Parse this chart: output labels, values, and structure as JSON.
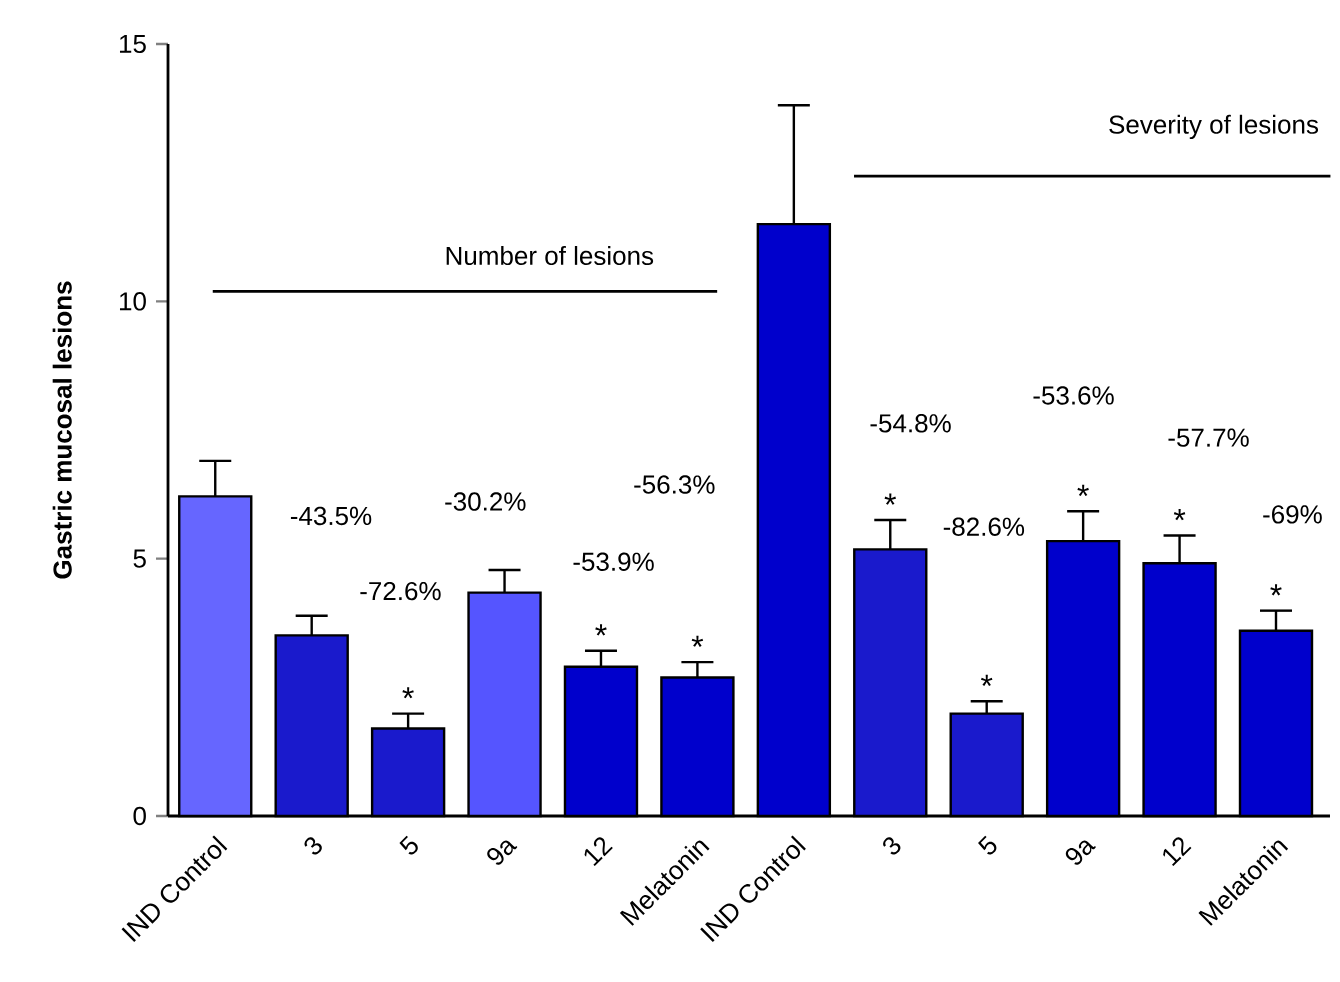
{
  "chart_data": {
    "type": "bar",
    "ylabel": "Gastric mucosal lesions",
    "categories": [
      "IND Control",
      "3",
      "5",
      "9a",
      "12",
      "Melatonin",
      "IND Control",
      "3",
      "5",
      "9a",
      "12",
      "Melatonin"
    ],
    "values": [
      6.21,
      3.51,
      1.7,
      4.34,
      2.9,
      2.69,
      11.5,
      5.18,
      1.99,
      5.34,
      4.91,
      3.6
    ],
    "errors": [
      [
        6.21,
        6.9
      ],
      [
        3.51,
        3.89
      ],
      [
        1.7,
        1.99
      ],
      [
        4.34,
        4.78
      ],
      [
        2.9,
        3.21
      ],
      [
        2.69,
        2.99
      ],
      [
        11.5,
        13.81
      ],
      [
        5.18,
        5.75
      ],
      [
        1.99,
        2.23
      ],
      [
        5.34,
        5.92
      ],
      [
        4.91,
        5.45
      ],
      [
        3.6,
        3.99
      ]
    ],
    "colors": [
      "#6666ff",
      "#1a1acc",
      "#1a1acc",
      "#5555ff",
      "#0000cc",
      "#0000cc",
      "#0000cc",
      "#1a1acc",
      "#1a1acc",
      "#0000cc",
      "#0000cc",
      "#0000cc"
    ],
    "ylim": [
      0,
      15
    ],
    "yticks": [
      0,
      5,
      10,
      15
    ],
    "grid": false,
    "annotations": [
      "Number of lesions",
      "Severity of lesions",
      "-43.5%",
      "-72.6%",
      "-30.2%",
      "-53.9%",
      "-56.3%",
      "-54.8%",
      "-82.6%",
      "-53.6%",
      "-57.7%",
      "-69%",
      "*",
      "*",
      "*",
      "*",
      "*",
      "*",
      "*",
      "*"
    ]
  }
}
